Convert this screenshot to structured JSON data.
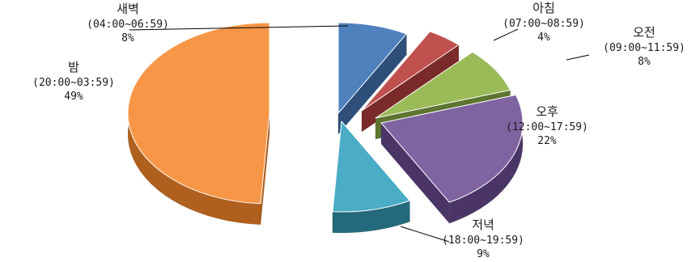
{
  "chart_data": {
    "type": "pie",
    "style": "3d-exploded",
    "legend": "none",
    "slices": [
      {
        "name": "새벽",
        "range": "(04:00~06:59)",
        "pct": "8%",
        "value": 8,
        "color": "#4f81bd",
        "side": "#2d4f7a"
      },
      {
        "name": "아침",
        "range": "(07:00~08:59)",
        "pct": "4%",
        "value": 4,
        "color": "#c0504d",
        "side": "#7a2a28"
      },
      {
        "name": "오전",
        "range": "(09:00~11:59)",
        "pct": "8%",
        "value": 8,
        "color": "#9bbb59",
        "side": "#5d7530"
      },
      {
        "name": "오후",
        "range": "(12:00~17:59)",
        "pct": "22%",
        "value": 22,
        "color": "#8064a2",
        "side": "#4a3566"
      },
      {
        "name": "저녁",
        "range": "(18:00~19:59)",
        "pct": "9%",
        "value": 9,
        "color": "#4bacc6",
        "side": "#256a7c"
      },
      {
        "name": "밤",
        "range": "(20:00~03:59)",
        "pct": "49%",
        "value": 49,
        "color": "#f79646",
        "side": "#b0601e"
      }
    ]
  }
}
